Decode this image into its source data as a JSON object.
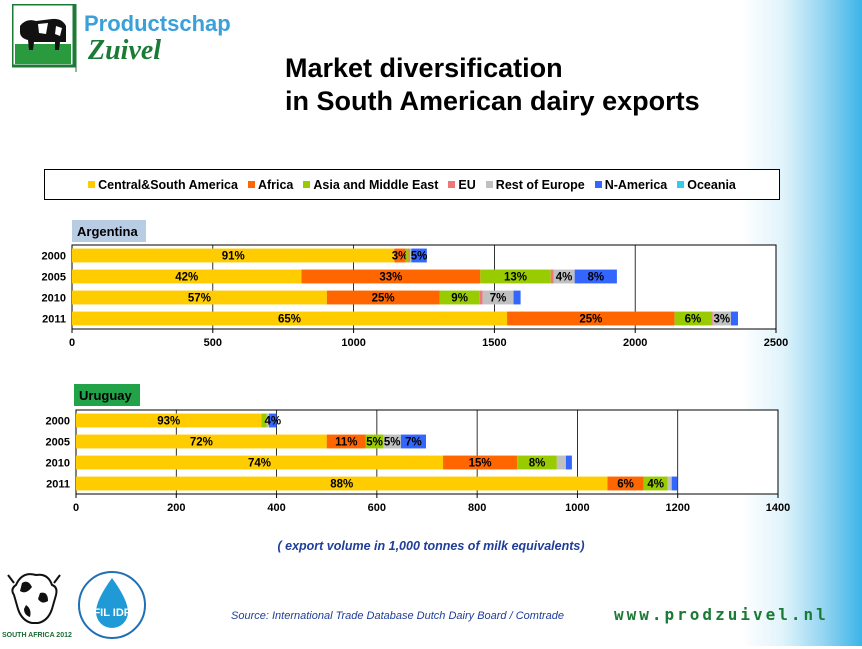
{
  "header": {
    "logo_line1": "Productschap",
    "logo_line2": "Zuivel",
    "title_line1": "Market diversification",
    "title_line2": "in South American dairy exports"
  },
  "legend": [
    {
      "label": "Central&South America",
      "color": "#ffcc00"
    },
    {
      "label": "Africa",
      "color": "#ff6600"
    },
    {
      "label": "Asia and Middle East",
      "color": "#99cc00"
    },
    {
      "label": "EU",
      "color": "#ee7777"
    },
    {
      "label": "Rest of Europe",
      "color": "#c0c0c0"
    },
    {
      "label": "N-America",
      "color": "#3366ff"
    },
    {
      "label": "Oceania",
      "color": "#33ccee"
    }
  ],
  "chart_data": [
    {
      "type": "bar",
      "orientation": "horizontal",
      "stacked": true,
      "title": "Argentina",
      "categories": [
        "2000",
        "2005",
        "2010",
        "2011"
      ],
      "xlim": [
        0,
        2500
      ],
      "xticks": [
        "0",
        "500",
        "1000",
        "1500",
        "2000",
        "2500"
      ],
      "grid": true,
      "series": [
        {
          "name": "Central&South America",
          "values": [
            1145,
            815,
            905,
            1545
          ],
          "labels": [
            "91%",
            "42%",
            "57%",
            "65%"
          ]
        },
        {
          "name": "Africa",
          "values": [
            40,
            635,
            400,
            595
          ],
          "labels": [
            "3%",
            "33%",
            "25%",
            "25%"
          ]
        },
        {
          "name": "Asia and Middle East",
          "values": [
            10,
            250,
            143,
            130
          ],
          "labels": [
            "",
            "13%",
            "9%",
            "6%"
          ]
        },
        {
          "name": "EU",
          "values": [
            5,
            10,
            10,
            5
          ],
          "labels": [
            "",
            "",
            "",
            ""
          ]
        },
        {
          "name": "Rest of Europe",
          "values": [
            5,
            75,
            110,
            65
          ],
          "labels": [
            "",
            "4%",
            "7%",
            "3%"
          ]
        },
        {
          "name": "N-America",
          "values": [
            55,
            150,
            25,
            25
          ],
          "labels": [
            "5%",
            "8%",
            "",
            ""
          ]
        },
        {
          "name": "Oceania",
          "values": [
            0,
            0,
            0,
            0
          ],
          "labels": [
            "",
            "",
            "",
            ""
          ]
        }
      ]
    },
    {
      "type": "bar",
      "orientation": "horizontal",
      "stacked": true,
      "title": "Uruguay",
      "categories": [
        "2000",
        "2005",
        "2010",
        "2011"
      ],
      "xlim": [
        0,
        1400
      ],
      "xticks": [
        "0",
        "200",
        "400",
        "600",
        "800",
        "1000",
        "1200",
        "1400"
      ],
      "grid": true,
      "series": [
        {
          "name": "Central&South America",
          "values": [
            370,
            500,
            732,
            1060
          ],
          "labels": [
            "93%",
            "72%",
            "74%",
            "88%"
          ]
        },
        {
          "name": "Africa",
          "values": [
            0,
            78,
            148,
            72
          ],
          "labels": [
            "",
            "11%",
            "15%",
            "6%"
          ]
        },
        {
          "name": "Asia and Middle East",
          "values": [
            10,
            35,
            79,
            48
          ],
          "labels": [
            "",
            "5%",
            "8%",
            "4%"
          ]
        },
        {
          "name": "EU",
          "values": [
            0,
            0,
            0,
            0
          ],
          "labels": [
            "",
            "",
            "",
            ""
          ]
        },
        {
          "name": "Rest of Europe",
          "values": [
            5,
            35,
            18,
            8
          ],
          "labels": [
            "",
            "5%",
            "",
            ""
          ]
        },
        {
          "name": "N-America",
          "values": [
            15,
            50,
            12,
            12
          ],
          "labels": [
            "4%",
            "7%",
            "",
            ""
          ]
        },
        {
          "name": "Oceania",
          "values": [
            0,
            0,
            0,
            0
          ],
          "labels": [
            "",
            "",
            "",
            ""
          ]
        }
      ]
    }
  ],
  "footer": {
    "caption": "( export volume in 1,000 tonnes of milk equivalents)",
    "source": "Source: International Trade Database Dutch Dairy Board / Comtrade",
    "url": "www.prodzuivel.nl",
    "event_logo_text": "SOUTH AFRICA 2012",
    "fil_logo_text": "FIL IDF"
  }
}
